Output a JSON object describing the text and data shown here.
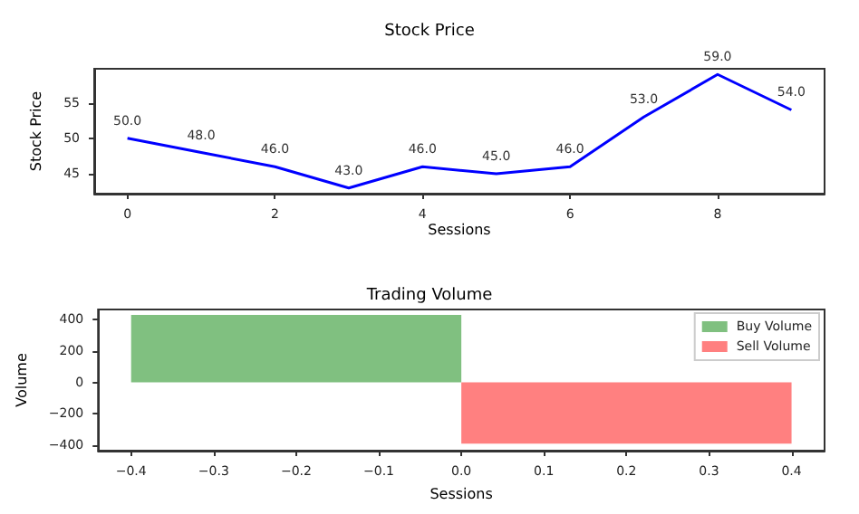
{
  "chart_data": [
    {
      "type": "line",
      "title": "Stock Price",
      "xlabel": "Sessions",
      "ylabel": "Stock Price",
      "x": [
        0,
        1,
        2,
        3,
        4,
        5,
        6,
        7,
        8,
        9
      ],
      "series": [
        {
          "color": "#0000ff",
          "values": [
            50,
            48,
            46,
            43,
            46,
            45,
            46,
            53,
            59,
            54
          ],
          "value_labels": [
            "50.0",
            "48.0",
            "46.0",
            "43.0",
            "46.0",
            "45.0",
            "46.0",
            "53.0",
            "59.0",
            "54.0"
          ]
        }
      ],
      "xlim": [
        -0.45,
        9.45
      ],
      "ylim": [
        42.2,
        59.8
      ],
      "xticks": [
        0,
        2,
        4,
        6,
        8
      ],
      "yticks": [
        45,
        50,
        55
      ],
      "marker": "none",
      "line_style": "solid",
      "grid": false,
      "legend": false
    },
    {
      "type": "bar",
      "title": "Trading Volume",
      "xlabel": "Sessions",
      "ylabel": "Volume",
      "series": [
        {
          "name": "Buy Volume",
          "color": "#80c080",
          "x": [
            -0.2
          ],
          "values": [
            430
          ]
        },
        {
          "name": "Sell Volume",
          "color": "#ff8080",
          "x": [
            0.2
          ],
          "values": [
            -390
          ]
        }
      ],
      "xlim": [
        -0.44,
        0.44
      ],
      "ylim": [
        -435,
        465
      ],
      "xticks": [
        {
          "value": -0.4,
          "label": "−0.4"
        },
        {
          "value": -0.3,
          "label": "−0.3"
        },
        {
          "value": -0.2,
          "label": "−0.2"
        },
        {
          "value": -0.1,
          "label": "−0.1"
        },
        {
          "value": 0,
          "label": "0.0"
        },
        {
          "value": 0.1,
          "label": "0.1"
        },
        {
          "value": 0.2,
          "label": "0.2"
        },
        {
          "value": 0.3,
          "label": "0.3"
        },
        {
          "value": 0.4,
          "label": "0.4"
        }
      ],
      "yticks": [
        {
          "value": -400,
          "label": "−400"
        },
        {
          "value": -200,
          "label": "−200"
        },
        0,
        200,
        400
      ],
      "grid": false,
      "legend": "top right"
    }
  ]
}
